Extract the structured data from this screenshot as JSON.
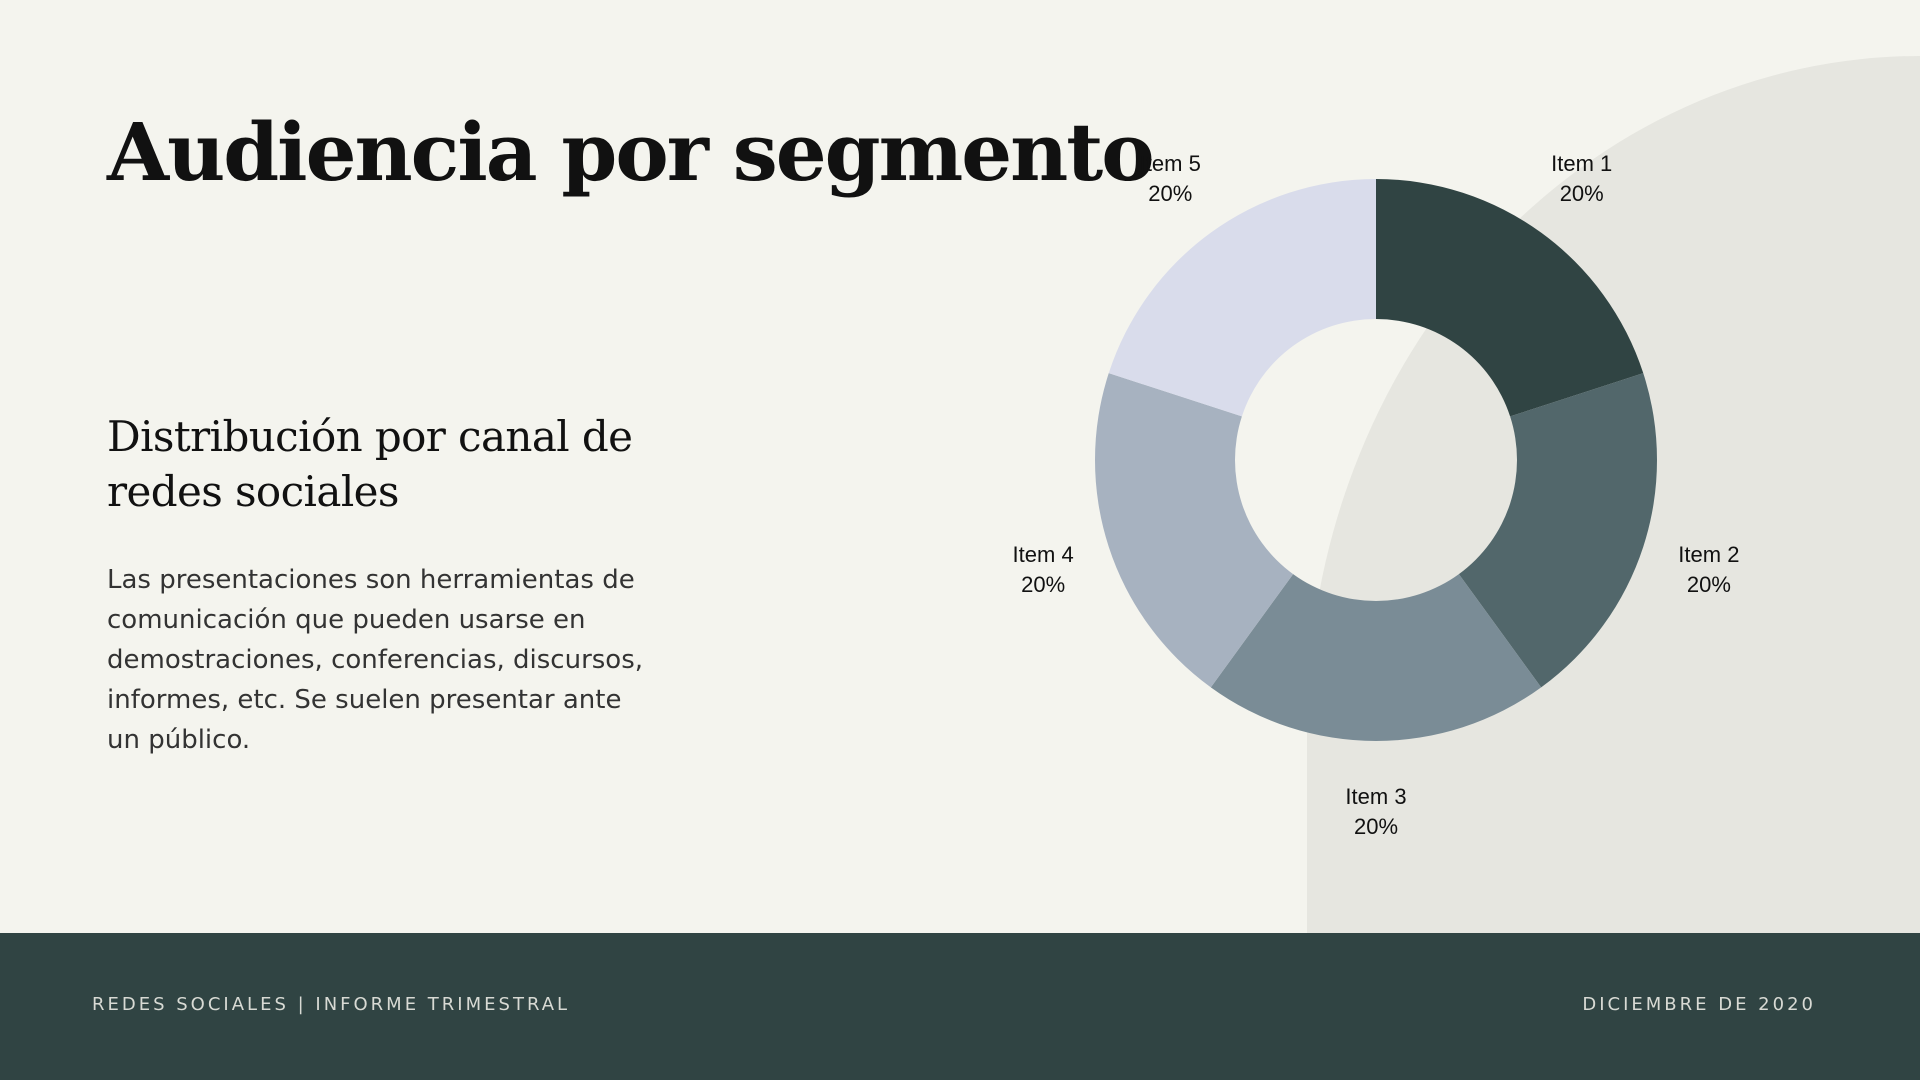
{
  "slide": {
    "title": "Audiencia por segmento",
    "subtitle": "Distribución por canal de redes sociales",
    "body": "Las presentaciones son herramientas de comunicación que pueden usarse en demostraciones, conferencias, discursos, informes, etc. Se suelen presentar ante un público."
  },
  "footer": {
    "left": "REDES SOCIALES | INFORME TRIMESTRAL",
    "right": "DICIEMBRE DE 2020"
  },
  "colors": {
    "background": "#F4F4EE",
    "accent_shape": "#E6E6E0",
    "footer": "#304443"
  },
  "chart_data": {
    "type": "pie",
    "variant": "donut",
    "title": "",
    "categories": [
      "Item 1",
      "Item 2",
      "Item 3",
      "Item 4",
      "Item 5"
    ],
    "values": [
      20,
      20,
      20,
      20,
      20
    ],
    "labels": [
      "20%",
      "20%",
      "20%",
      "20%",
      "20%"
    ],
    "colors": [
      "#304443",
      "#52676B",
      "#7A8C96",
      "#A7B2C0",
      "#D9DCEB"
    ],
    "legend": "none"
  }
}
